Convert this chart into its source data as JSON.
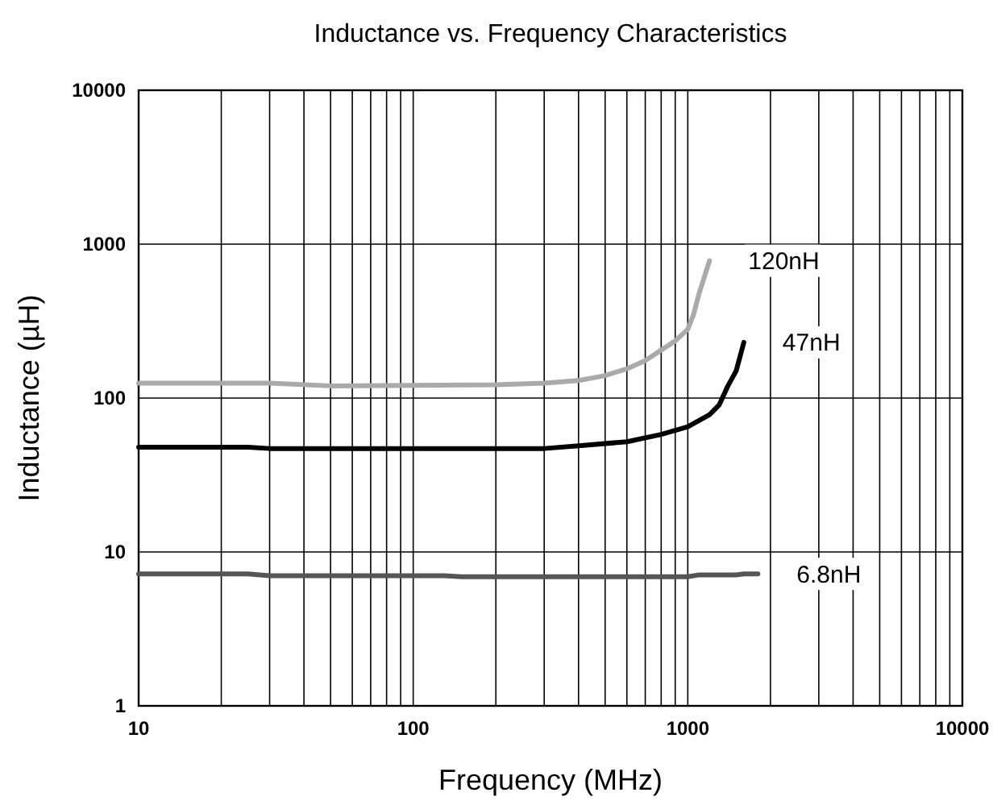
{
  "chart_data": {
    "type": "line",
    "title": "Inductance vs. Frequency Characteristics",
    "xlabel": "Frequency (MHz)",
    "ylabel": "Inductance (µH)",
    "log": "xy",
    "grid": true,
    "line_style": "solid",
    "marker": "none",
    "xlim": [
      10,
      10000
    ],
    "ylim": [
      1,
      10000
    ],
    "xticks": [
      10,
      {
        "value": 20,
        "label": null
      },
      {
        "value": 30,
        "label": null
      },
      {
        "value": 40,
        "label": null
      },
      {
        "value": 50,
        "label": null
      },
      {
        "value": 60,
        "label": null
      },
      {
        "value": 70,
        "label": null
      },
      {
        "value": 80,
        "label": null
      },
      {
        "value": 90,
        "label": null
      },
      100,
      {
        "value": 200,
        "label": null
      },
      {
        "value": 300,
        "label": null
      },
      {
        "value": 400,
        "label": null
      },
      {
        "value": 500,
        "label": null
      },
      {
        "value": 600,
        "label": null
      },
      {
        "value": 700,
        "label": null
      },
      {
        "value": 800,
        "label": null
      },
      {
        "value": 900,
        "label": null
      },
      1000,
      {
        "value": 2000,
        "label": null
      },
      {
        "value": 3000,
        "label": null
      },
      {
        "value": 4000,
        "label": null
      },
      {
        "value": 5000,
        "label": null
      },
      {
        "value": 6000,
        "label": null
      },
      {
        "value": 7000,
        "label": null
      },
      {
        "value": 8000,
        "label": null
      },
      {
        "value": 9000,
        "label": null
      },
      10000
    ],
    "yticks": [
      1,
      10,
      100,
      1000,
      10000
    ],
    "series": [
      {
        "name": "6.8nH",
        "color": "#555555",
        "x": [
          10,
          25,
          30,
          130,
          150,
          1000,
          1100,
          1500,
          1600,
          1800
        ],
        "values": [
          7.2,
          7.2,
          7.0,
          7.0,
          6.9,
          6.9,
          7.1,
          7.1,
          7.2,
          7.2
        ]
      },
      {
        "name": "47nH",
        "color": "#000000",
        "x": [
          10,
          25,
          30,
          300,
          400,
          600,
          800,
          1000,
          1200,
          1300,
          1400,
          1500,
          1600
        ],
        "values": [
          48,
          48,
          47,
          47,
          49,
          52,
          58,
          65,
          78,
          90,
          120,
          150,
          230
        ]
      },
      {
        "name": "120nH",
        "color": "#aaaaaa",
        "x": [
          10,
          30,
          50,
          200,
          300,
          400,
          500,
          600,
          700,
          800,
          900,
          1000,
          1050,
          1100,
          1200
        ],
        "values": [
          125,
          125,
          120,
          122,
          125,
          130,
          140,
          155,
          175,
          205,
          235,
          280,
          350,
          480,
          780
        ]
      }
    ]
  }
}
